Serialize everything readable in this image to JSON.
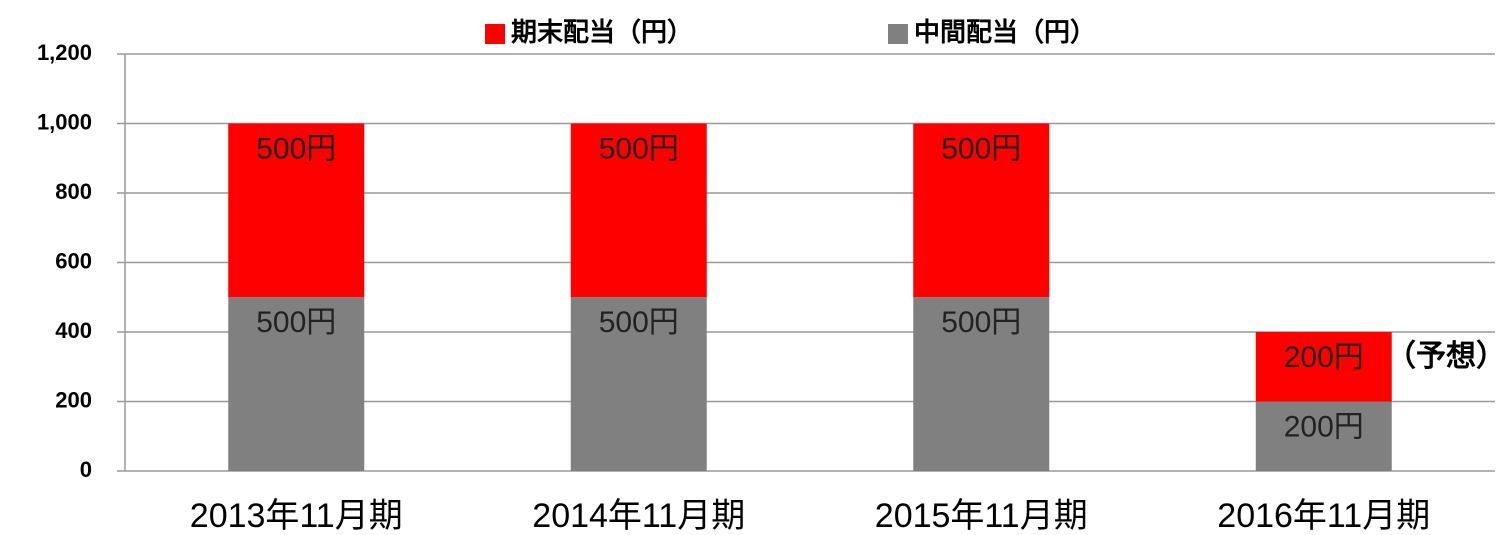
{
  "chart_data": {
    "type": "stacked_bar",
    "categories": [
      "2013年11月期",
      "2014年11月期",
      "2015年11月期",
      "2016年11月期"
    ],
    "series": [
      {
        "name": "中間配当（円）",
        "color": "#808080",
        "values": [
          500,
          500,
          500,
          200
        ],
        "value_labels": [
          "500円",
          "500円",
          "500円",
          "200円"
        ]
      },
      {
        "name": "期末配当（円）",
        "color": "#ff0000",
        "values": [
          500,
          500,
          500,
          200
        ],
        "value_labels": [
          "500円",
          "500円",
          "500円",
          "200円"
        ]
      }
    ],
    "ylim": [
      0,
      1200
    ],
    "yticks": [
      0,
      200,
      400,
      600,
      800,
      {
        "value": 1000,
        "label": "1,000"
      },
      {
        "value": 1200,
        "label": "1,200"
      }
    ],
    "grid": true,
    "annotation": "（予想）"
  }
}
